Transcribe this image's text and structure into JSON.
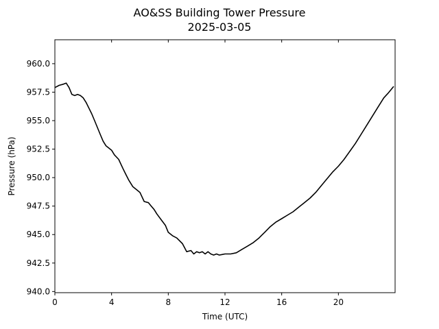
{
  "chart_data": {
    "type": "line",
    "title": "AO&SS Building Tower Pressure",
    "subtitle": "2025-03-05",
    "xlabel": "Time (UTC)",
    "ylabel": "Pressure (hPa)",
    "xlim": [
      0,
      24
    ],
    "ylim": [
      939.9,
      962.1
    ],
    "xticks": [
      0,
      4,
      8,
      12,
      16,
      20
    ],
    "xtick_labels": [
      "0",
      "4",
      "8",
      "12",
      "16",
      "20"
    ],
    "yticks": [
      940.0,
      942.5,
      945.0,
      947.5,
      950.0,
      952.5,
      955.0,
      957.5,
      960.0
    ],
    "ytick_labels": [
      "940.0",
      "942.5",
      "945.0",
      "947.5",
      "950.0",
      "952.5",
      "955.0",
      "957.5",
      "960.0"
    ],
    "grid": false,
    "series": [
      {
        "color": "#000000",
        "x": [
          0,
          0.3,
          0.6,
          0.8,
          1.0,
          1.2,
          1.4,
          1.6,
          1.8,
          2.0,
          2.2,
          2.4,
          2.6,
          2.8,
          3.0,
          3.2,
          3.4,
          3.6,
          3.8,
          4.0,
          4.2,
          4.5,
          4.8,
          5.0,
          5.2,
          5.5,
          5.8,
          6.0,
          6.3,
          6.6,
          6.8,
          7.0,
          7.2,
          7.5,
          7.8,
          8.0,
          8.3,
          8.6,
          9.0,
          9.3,
          9.6,
          9.8,
          10.0,
          10.2,
          10.4,
          10.6,
          10.8,
          11.0,
          11.2,
          11.4,
          11.6,
          11.8,
          12.0,
          12.4,
          12.8,
          13.2,
          13.6,
          14.0,
          14.4,
          14.8,
          15.2,
          15.6,
          16.0,
          16.4,
          16.8,
          17.2,
          17.6,
          18.0,
          18.4,
          18.8,
          19.2,
          19.6,
          20.0,
          20.4,
          20.8,
          21.2,
          21.6,
          22.0,
          22.4,
          22.8,
          23.2,
          23.5,
          23.7,
          23.9
        ],
        "y": [
          957.9,
          958.1,
          958.2,
          958.3,
          957.9,
          957.3,
          957.2,
          957.3,
          957.2,
          957.0,
          956.6,
          956.1,
          955.6,
          955.0,
          954.4,
          953.8,
          953.2,
          952.8,
          952.6,
          952.4,
          952.0,
          951.6,
          950.8,
          950.3,
          949.8,
          949.2,
          948.9,
          948.7,
          947.9,
          947.8,
          947.5,
          947.2,
          946.8,
          946.3,
          945.8,
          945.2,
          944.9,
          944.7,
          944.2,
          943.5,
          943.6,
          943.3,
          943.5,
          943.4,
          943.5,
          943.3,
          943.5,
          943.3,
          943.2,
          943.3,
          943.2,
          943.25,
          943.3,
          943.3,
          943.4,
          943.7,
          944.0,
          944.3,
          944.7,
          945.2,
          945.7,
          946.1,
          946.4,
          946.7,
          947.0,
          947.4,
          947.8,
          948.2,
          948.7,
          949.3,
          949.9,
          950.5,
          951.0,
          951.6,
          952.3,
          953.0,
          953.8,
          954.6,
          955.4,
          956.2,
          957.0,
          957.4,
          957.7,
          958.0
        ]
      }
    ]
  }
}
